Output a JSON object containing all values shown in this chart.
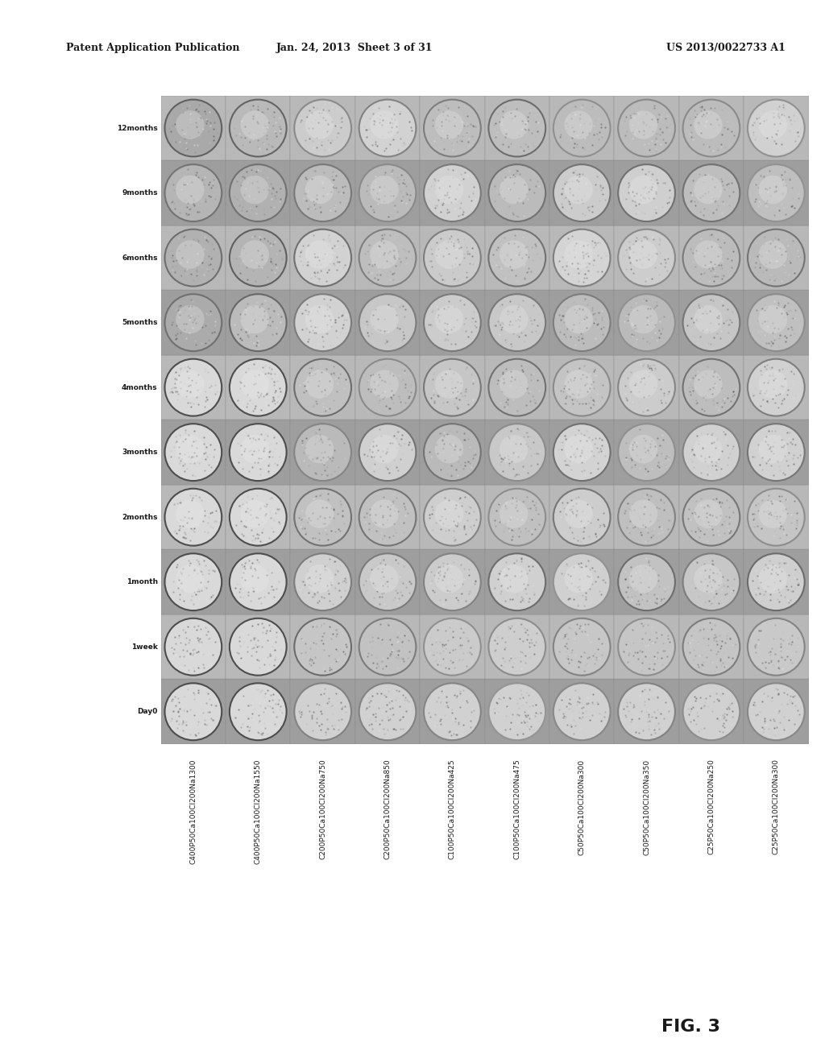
{
  "header_left": "Patent Application Publication",
  "header_mid": "Jan. 24, 2013  Sheet 3 of 31",
  "header_right": "US 2013/0022733 A1",
  "figure_label": "FIG. 3",
  "row_labels": [
    "Day0",
    "1week",
    "1month",
    "2months",
    "3months",
    "4months",
    "5months",
    "6months",
    "9months",
    "12months"
  ],
  "col_labels": [
    "C400P50Ca100Cl200Na1300",
    "C400P50Ca100Cl200Na1550",
    "C200P50Ca100Cl200Na750",
    "C200P50Ca100Cl200Na850",
    "C100P50Ca100Cl200Na425",
    "C100P50Ca100Cl200Na475",
    "C50P50Ca100Cl200Na300",
    "C50P50Ca100Cl200Na350",
    "C25P50Ca100Cl200Na250",
    "C25P50Ca100Cl200Na300"
  ],
  "n_rows": 10,
  "n_cols": 10,
  "bg_color": "#ffffff",
  "text_color": "#1a1a1a",
  "header_fontsize": 9,
  "label_fontsize": 7,
  "figure_label_fontsize": 16
}
